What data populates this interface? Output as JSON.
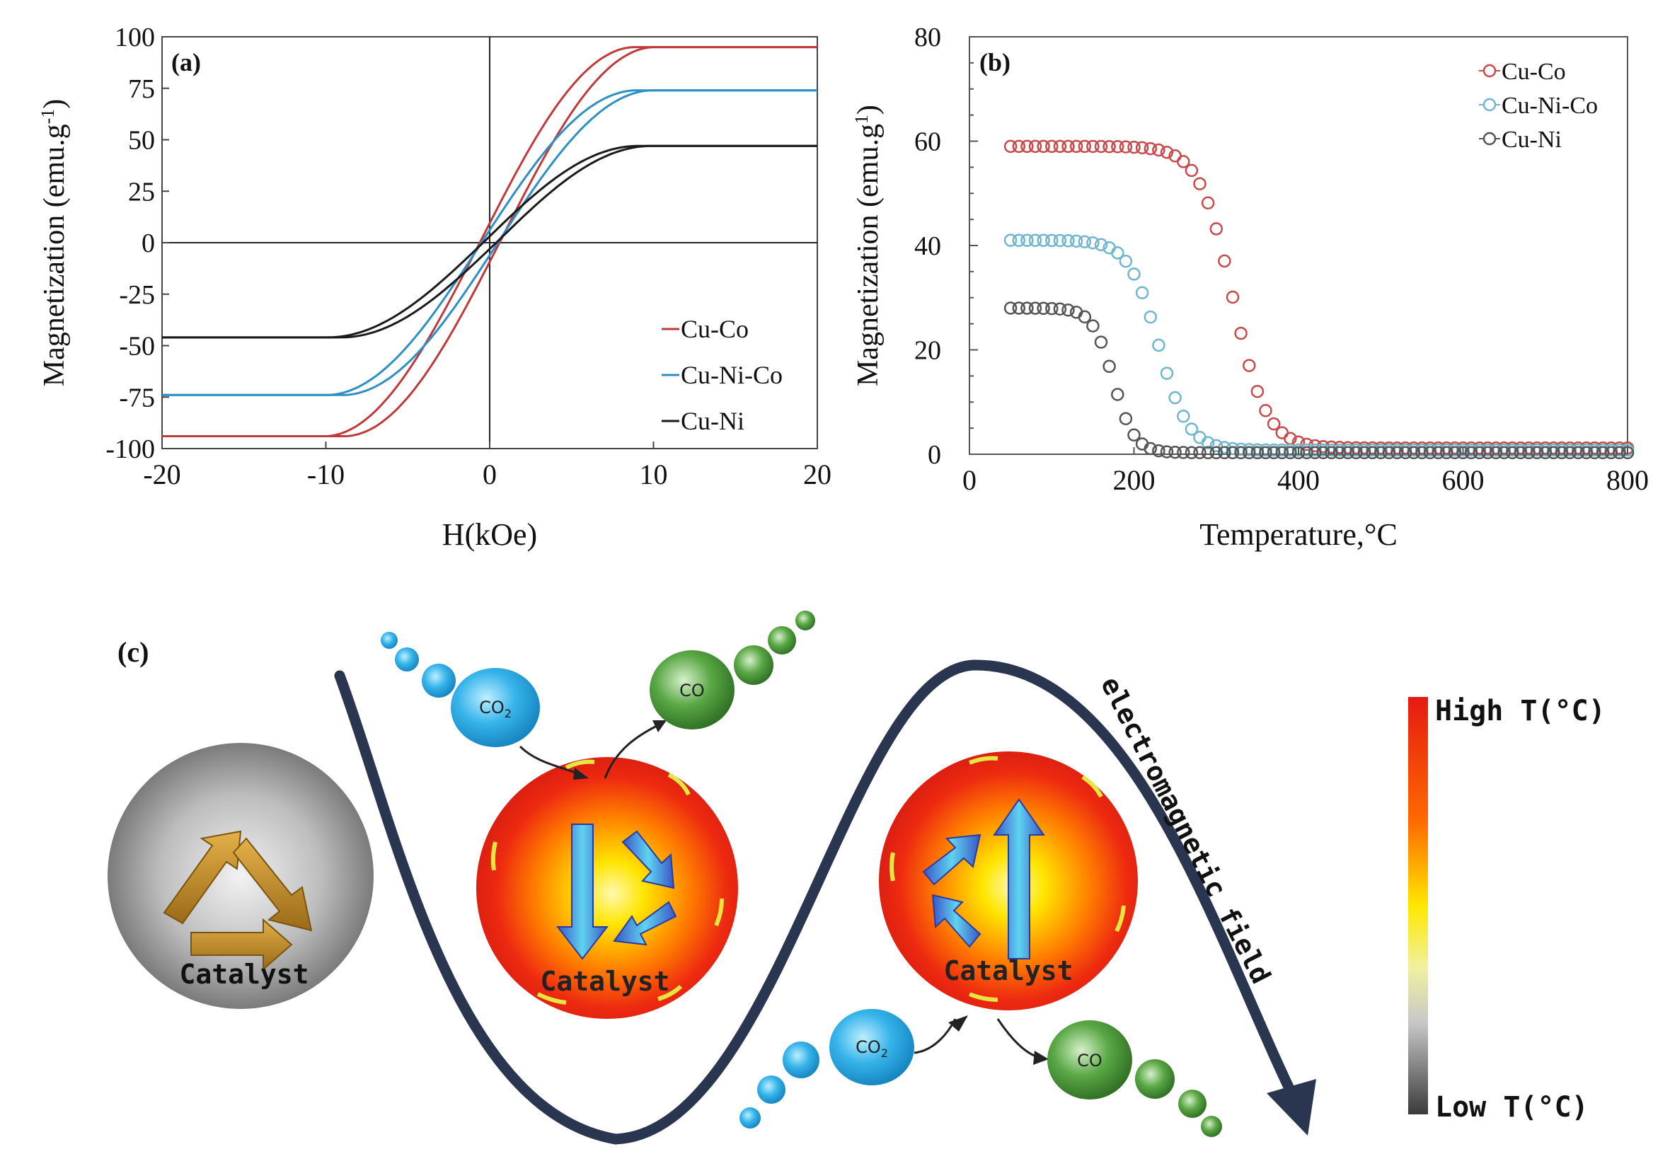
{
  "chart_data": [
    {
      "panel": "(a)",
      "type": "line",
      "title": "",
      "xlabel": "H(kOe)",
      "ylabel": "Magnetization (emu.g-1)",
      "xlim": [
        -20,
        20
      ],
      "ylim": [
        -100,
        100
      ],
      "xticks": [
        -20,
        -10,
        0,
        10,
        20
      ],
      "yticks": [
        -100,
        -75,
        -50,
        -25,
        0,
        25,
        50,
        75,
        100
      ],
      "legend_position": "bottom-right",
      "series": [
        {
          "name": "Cu-Co",
          "color": "#c0393b",
          "ms": 95,
          "ms_neg": -94,
          "hsat": 9.5,
          "coercivity": 0.6
        },
        {
          "name": "Cu-Ni-Co",
          "color": "#2e8fc4",
          "ms": 74,
          "ms_neg": -74,
          "hsat": 9.5,
          "coercivity": 0.5
        },
        {
          "name": "Cu-Ni",
          "color": "#1a1a1a",
          "ms": 47,
          "ms_neg": -46,
          "hsat": 9.5,
          "coercivity": 0.4
        }
      ]
    },
    {
      "panel": "(b)",
      "type": "scatter",
      "title": "",
      "xlabel": "Temperature,°C",
      "ylabel": "Magnetization (emu.g-1)",
      "xlim": [
        0,
        800
      ],
      "ylim": [
        0,
        80
      ],
      "xticks": [
        0,
        200,
        400,
        600,
        800
      ],
      "yticks": [
        0,
        20,
        40,
        60,
        80
      ],
      "legend_position": "top-right",
      "series": [
        {
          "name": "Cu-Co",
          "color": "#c94a4a",
          "m0": 59,
          "tc": 320,
          "width": 45,
          "floor": 1.2,
          "x": [
            50,
            60,
            70,
            80,
            90,
            100,
            110,
            120,
            130,
            140,
            150,
            160,
            170,
            180,
            190,
            200,
            210,
            220,
            230,
            240,
            250,
            260,
            270,
            280,
            290,
            300,
            310,
            320,
            330,
            340,
            350,
            360,
            370,
            380,
            390,
            400,
            410,
            420,
            430,
            440,
            450,
            460,
            470,
            480,
            490,
            500,
            510,
            520,
            530,
            540,
            550,
            560,
            570,
            580,
            590,
            600,
            610,
            620,
            630,
            640,
            650,
            660,
            670,
            680,
            690,
            700,
            710,
            720,
            730,
            740,
            750,
            760,
            770,
            780,
            790,
            800
          ]
        },
        {
          "name": "Cu-Ni-Co",
          "color": "#6fb6cf",
          "m0": 41,
          "tc": 230,
          "width": 40,
          "floor": 0.8,
          "x": [
            50,
            60,
            70,
            80,
            90,
            100,
            110,
            120,
            130,
            140,
            150,
            160,
            170,
            180,
            190,
            200,
            210,
            220,
            230,
            240,
            250,
            260,
            270,
            280,
            290,
            300,
            310,
            320,
            330,
            340,
            350,
            360,
            370,
            380,
            390,
            400,
            410,
            420,
            430,
            440,
            450,
            460,
            470,
            480,
            490,
            500,
            510,
            520,
            530,
            540,
            550,
            560,
            570,
            580,
            590,
            600,
            610,
            620,
            630,
            640,
            650,
            660,
            670,
            680,
            690,
            700,
            710,
            720,
            730,
            740,
            750,
            760,
            770,
            780,
            790,
            800
          ]
        },
        {
          "name": "Cu-Ni",
          "color": "#555555",
          "m0": 28,
          "tc": 175,
          "width": 28,
          "floor": 0.3,
          "x": [
            50,
            60,
            70,
            80,
            90,
            100,
            110,
            120,
            130,
            140,
            150,
            160,
            170,
            180,
            190,
            200,
            210,
            220,
            230,
            240,
            250,
            260,
            270,
            280,
            290,
            300,
            310,
            320,
            330,
            340,
            350,
            360,
            370,
            380,
            390,
            400,
            410,
            420,
            430,
            440,
            450,
            460,
            470,
            480,
            490,
            500,
            510,
            520,
            530,
            540,
            550,
            560,
            570,
            580,
            590,
            600,
            610,
            620,
            630,
            640,
            650,
            660,
            670,
            680,
            690,
            700,
            710,
            720,
            730,
            740,
            750,
            760,
            770,
            780,
            790,
            800
          ]
        }
      ]
    }
  ],
  "panel_a_label": "(a)",
  "panel_b_label": "(b)",
  "panel_c_label": "(c)",
  "diagram": {
    "catalyst_label": "Catalyst",
    "co2_label": "CO",
    "co2_sub": "2",
    "co_label": "CO",
    "field_label": "electromagnetic field",
    "colorbar_high": "High T(°C)",
    "colorbar_low": "Low T(°C)"
  },
  "colors": {
    "wave": "#2a3550",
    "sphere_red": "#e8231b",
    "sphere_yellow": "#fff200",
    "co2_blue": "#38b6e8",
    "co_green": "#4d9a3c"
  }
}
